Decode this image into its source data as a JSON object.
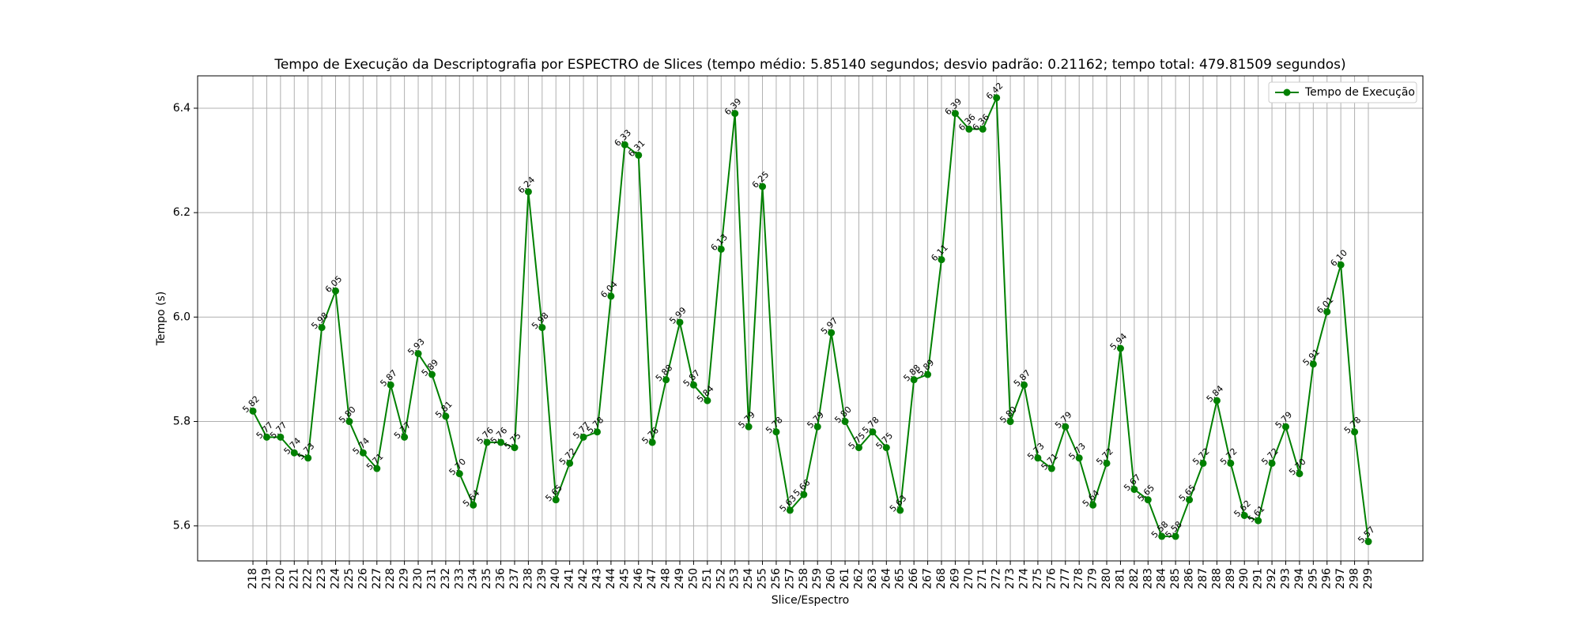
{
  "chart_data": {
    "type": "line",
    "title": "Tempo de Execução da Descriptografia por ESPECTRO de Slices (tempo médio: 5.85140 segundos; desvio padrão: 0.21162; tempo total: 479.81509 segundos)",
    "x_label": "Slice/Espectro",
    "y_label": "Tempo (s)",
    "categories": [
      "218",
      "219",
      "220",
      "221",
      "222",
      "223",
      "224",
      "225",
      "226",
      "227",
      "228",
      "229",
      "230",
      "231",
      "232",
      "233",
      "234",
      "235",
      "236",
      "237",
      "238",
      "239",
      "240",
      "241",
      "242",
      "243",
      "244",
      "245",
      "246",
      "247",
      "248",
      "249",
      "250",
      "251",
      "252",
      "253",
      "254",
      "255",
      "256",
      "257",
      "258",
      "259",
      "260",
      "261",
      "262",
      "263",
      "264",
      "265",
      "266",
      "267",
      "268",
      "269",
      "270",
      "271",
      "272",
      "273",
      "274",
      "275",
      "276",
      "277",
      "278",
      "279",
      "280",
      "281",
      "282",
      "283",
      "284",
      "285",
      "286",
      "287",
      "288",
      "289",
      "290",
      "291",
      "292",
      "293",
      "294",
      "295",
      "296",
      "297",
      "298",
      "299"
    ],
    "series": [
      {
        "name": "Tempo de Execução",
        "color": "#008000",
        "values": [
          5.82,
          5.77,
          5.77,
          5.74,
          5.73,
          5.98,
          6.05,
          5.8,
          5.74,
          5.71,
          5.87,
          5.77,
          5.93,
          5.89,
          5.81,
          5.7,
          5.64,
          5.76,
          5.76,
          5.75,
          6.24,
          5.98,
          5.65,
          5.72,
          5.77,
          5.78,
          6.04,
          6.33,
          6.31,
          5.76,
          5.88,
          5.99,
          5.87,
          5.84,
          6.13,
          6.39,
          5.79,
          6.25,
          5.78,
          5.63,
          5.66,
          5.79,
          5.97,
          5.8,
          5.75,
          5.78,
          5.75,
          5.63,
          5.88,
          5.89,
          6.11,
          6.39,
          6.36,
          6.36,
          6.42,
          5.8,
          5.87,
          5.73,
          5.71,
          5.79,
          5.73,
          5.64,
          5.72,
          5.94,
          5.67,
          5.65,
          5.58,
          5.58,
          5.65,
          5.72,
          5.84,
          5.72,
          5.62,
          5.61,
          5.72,
          5.79,
          5.7,
          5.91,
          6.01,
          6.1,
          5.78,
          5.57
        ],
        "value_labels": [
          "5.82",
          "5.77",
          "5.77",
          "5.74",
          "5.73",
          "5.98",
          "6.05",
          "5.80",
          "5.74",
          "5.71",
          "5.87",
          "5.77",
          "5.93",
          "5.89",
          "5.81",
          "5.70",
          "5.64",
          "5.76",
          "5.76",
          "5.75",
          "6.24",
          "5.98",
          "5.65",
          "5.72",
          "5.77",
          "5.78",
          "6.04",
          "6.33",
          "6.31",
          "5.76",
          "5.88",
          "5.99",
          "5.87",
          "5.84",
          "6.13",
          "6.39",
          "5.79",
          "6.25",
          "5.78",
          "5.63",
          "5.66",
          "5.79",
          "5.97",
          "5.80",
          "5.75",
          "5.78",
          "5.75",
          "5.63",
          "5.88",
          "5.89",
          "6.11",
          "6.39",
          "6.36",
          "6.36",
          "6.42",
          "5.80",
          "5.87",
          "5.73",
          "5.71",
          "5.79",
          "5.73",
          "5.64",
          "5.72",
          "5.94",
          "5.67",
          "5.65",
          "5.58",
          "5.58",
          "5.65",
          "5.72",
          "5.84",
          "5.72",
          "5.62",
          "5.61",
          "5.72",
          "5.79",
          "5.70",
          "5.91",
          "6.01",
          "6.10",
          "5.78",
          "5.57"
        ]
      }
    ],
    "ylim": [
      5.533,
      6.462
    ],
    "yticks": [
      5.6,
      5.8,
      {
        "value": 6,
        "label": "6.0"
      },
      6.2,
      6.4
    ],
    "grid": true,
    "legend": "upper right"
  }
}
